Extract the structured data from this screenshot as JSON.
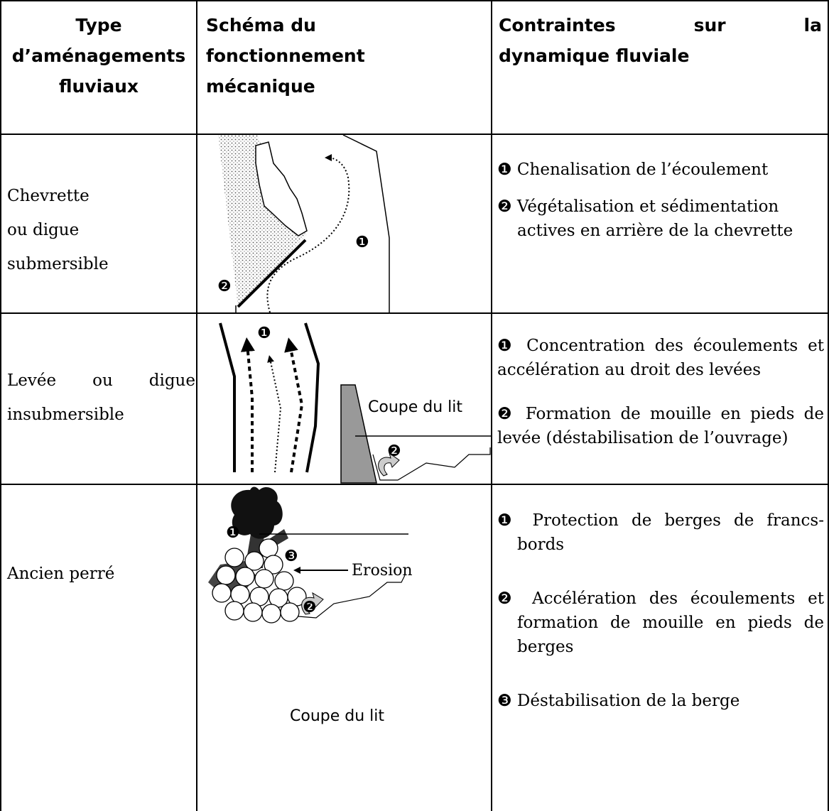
{
  "table": {
    "header": [
      [
        "Type",
        "d’aménagements",
        "fluviaux"
      ],
      [
        "Schéma du",
        "fonctionnement",
        "mécanique"
      ],
      [
        "Contraintes sur la",
        "dynamique fluviale"
      ]
    ],
    "rows": [
      {
        "type": [
          "Chevrette",
          "ou digue",
          "submersible"
        ],
        "schema": {
          "labels": [
            "❶",
            "❷"
          ]
        },
        "constraints": [
          "❶ Chenalisation de l’écoulement",
          "❷ Végétalisation et sédimentation actives en arrière de la chevrette"
        ]
      },
      {
        "type": [
          "Levée ou digue",
          "insubmersible"
        ],
        "schema": {
          "labels": [
            "❶",
            "❷"
          ],
          "caption": "Coupe du lit"
        },
        "constraints": [
          "❶ Concentration des écoulements et accélération au droit des levées",
          "❷ Formation de mouille en pieds de levée (déstabilisation de l’ouvrage)"
        ]
      },
      {
        "type": [
          "Ancien perré"
        ],
        "schema": {
          "labels": [
            "❶",
            "❸",
            "❷"
          ],
          "annotation": "Erosion",
          "caption": "Coupe du lit"
        },
        "constraints": [
          "❶ Protection de berges de francs-bords",
          "❷ Accélération des écoulements et formation de mouille en pieds de berges",
          "❸ Déstabilisation de la berge"
        ]
      }
    ]
  }
}
